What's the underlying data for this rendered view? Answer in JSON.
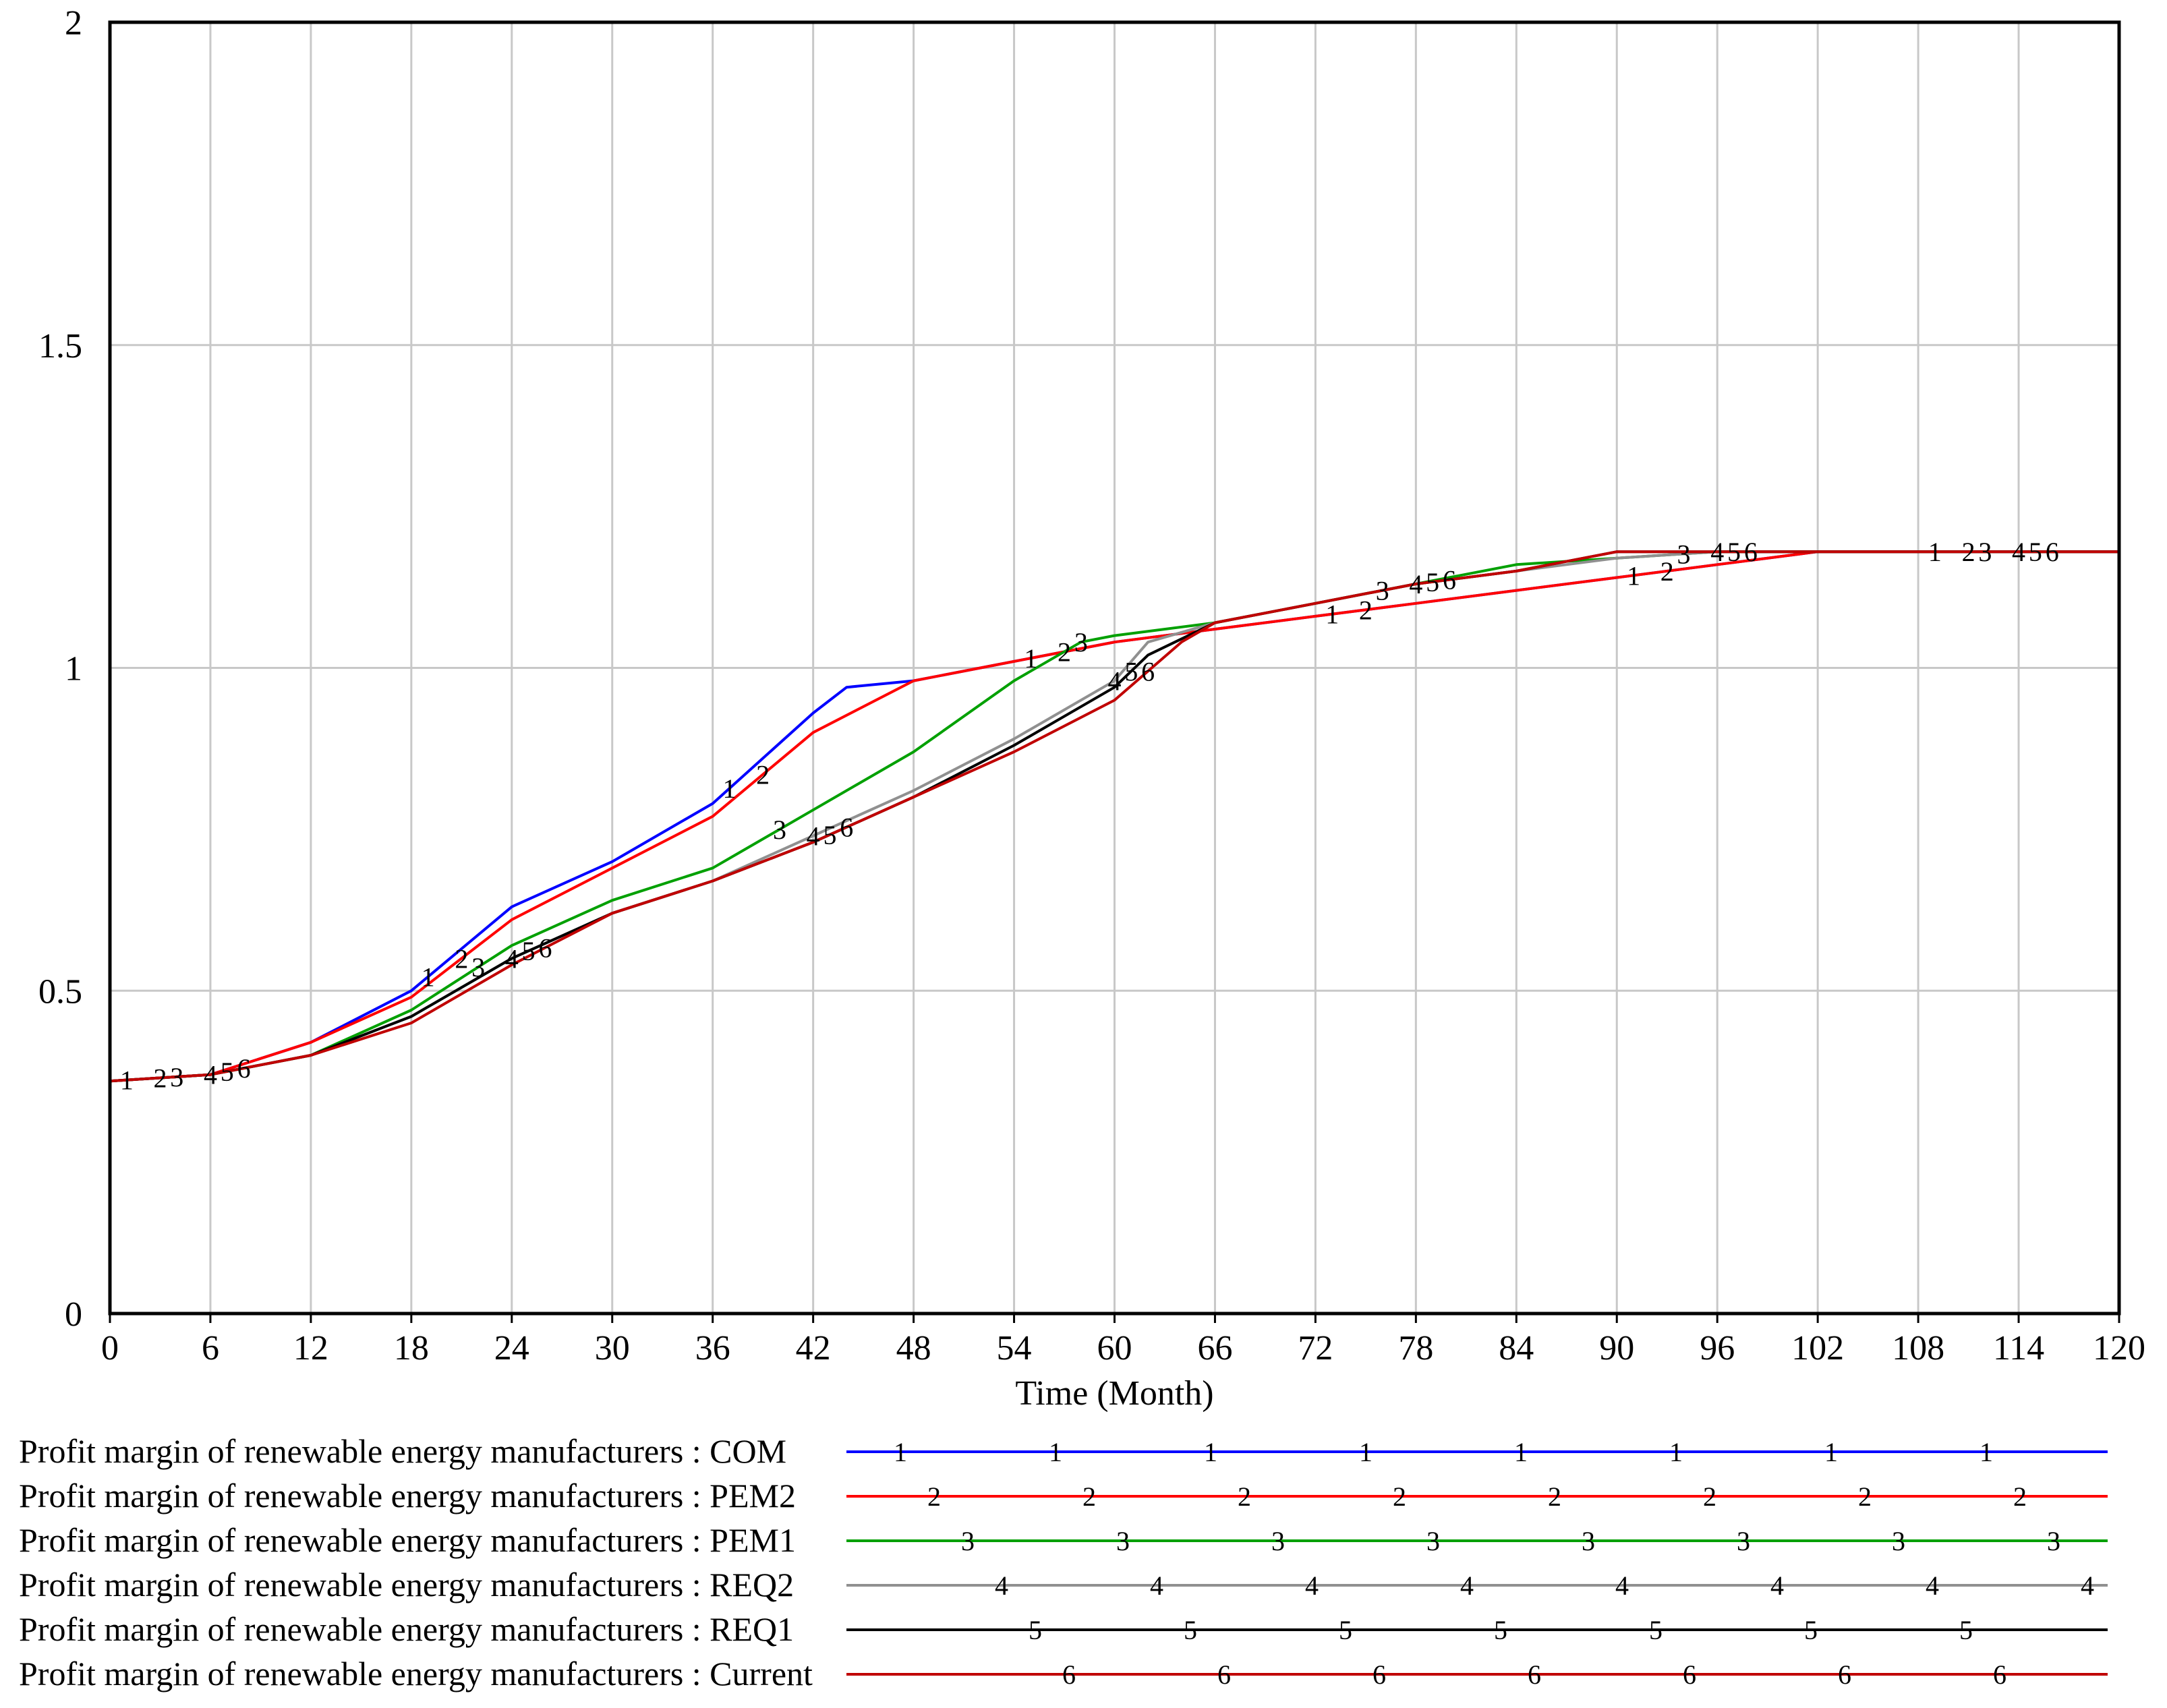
{
  "chart_data": {
    "type": "line",
    "xlabel": "Time (Month)",
    "ylabel": "",
    "xlim": [
      0,
      120
    ],
    "ylim": [
      0,
      2
    ],
    "x_ticks": [
      0,
      6,
      12,
      18,
      24,
      30,
      36,
      42,
      48,
      54,
      60,
      66,
      72,
      78,
      84,
      90,
      96,
      102,
      108,
      114,
      120
    ],
    "y_ticks": [
      0,
      0.5,
      1,
      1.5,
      2
    ],
    "y_tick_labels": [
      "0",
      "0.5",
      "1",
      "1.5",
      "2"
    ],
    "grid": true,
    "legend_position": "bottom",
    "series": [
      {
        "name": "Profit margin of renewable energy manufacturers : COM",
        "marker": "1",
        "color": "#0000ff",
        "x": [
          0,
          6,
          12,
          18,
          24,
          30,
          36,
          42,
          44,
          48,
          54,
          60,
          66,
          72,
          78,
          84,
          90,
          96,
          102,
          108,
          120
        ],
        "y": [
          0.36,
          0.37,
          0.42,
          0.5,
          0.63,
          0.7,
          0.79,
          0.93,
          0.97,
          0.98,
          1.01,
          1.04,
          1.06,
          1.08,
          1.1,
          1.12,
          1.14,
          1.16,
          1.18,
          1.18,
          1.18
        ]
      },
      {
        "name": "Profit margin of renewable energy manufacturers : PEM2",
        "marker": "2",
        "color": "#ff0000",
        "x": [
          0,
          6,
          12,
          18,
          24,
          30,
          36,
          42,
          48,
          54,
          60,
          66,
          72,
          78,
          84,
          90,
          96,
          102,
          108,
          120
        ],
        "y": [
          0.36,
          0.37,
          0.42,
          0.49,
          0.61,
          0.69,
          0.77,
          0.9,
          0.98,
          1.01,
          1.04,
          1.06,
          1.08,
          1.1,
          1.12,
          1.14,
          1.16,
          1.18,
          1.18,
          1.18
        ]
      },
      {
        "name": "Profit margin of renewable energy manufacturers : PEM1",
        "marker": "3",
        "color": "#00a000",
        "x": [
          0,
          6,
          12,
          18,
          24,
          30,
          36,
          42,
          48,
          54,
          58,
          60,
          66,
          72,
          78,
          84,
          90,
          96,
          102,
          108,
          120
        ],
        "y": [
          0.36,
          0.37,
          0.4,
          0.47,
          0.57,
          0.64,
          0.69,
          0.78,
          0.87,
          0.98,
          1.04,
          1.05,
          1.07,
          1.1,
          1.13,
          1.16,
          1.17,
          1.18,
          1.18,
          1.18,
          1.18
        ]
      },
      {
        "name": "Profit margin of renewable energy manufacturers : REQ2",
        "marker": "4",
        "color": "#909090",
        "x": [
          0,
          6,
          12,
          18,
          24,
          30,
          36,
          42,
          48,
          54,
          60,
          62,
          66,
          72,
          78,
          84,
          90,
          96,
          102,
          108,
          120
        ],
        "y": [
          0.36,
          0.37,
          0.4,
          0.46,
          0.55,
          0.62,
          0.67,
          0.74,
          0.81,
          0.89,
          0.98,
          1.04,
          1.07,
          1.1,
          1.13,
          1.15,
          1.17,
          1.18,
          1.18,
          1.18,
          1.18
        ]
      },
      {
        "name": "Profit margin of renewable energy manufacturers : REQ1",
        "marker": "5",
        "color": "#000000",
        "x": [
          0,
          6,
          12,
          18,
          24,
          30,
          36,
          42,
          48,
          54,
          60,
          62,
          66,
          72,
          78,
          84,
          90,
          96,
          102,
          108,
          120
        ],
        "y": [
          0.36,
          0.37,
          0.4,
          0.46,
          0.55,
          0.62,
          0.67,
          0.73,
          0.8,
          0.88,
          0.97,
          1.02,
          1.07,
          1.1,
          1.13,
          1.15,
          1.18,
          1.18,
          1.18,
          1.18,
          1.18
        ]
      },
      {
        "name": "Profit margin of renewable energy manufacturers : Current",
        "marker": "6",
        "color": "#c00000",
        "x": [
          0,
          6,
          12,
          18,
          24,
          30,
          36,
          42,
          48,
          54,
          60,
          64,
          66,
          72,
          78,
          84,
          90,
          96,
          102,
          108,
          120
        ],
        "y": [
          0.36,
          0.37,
          0.4,
          0.45,
          0.54,
          0.62,
          0.67,
          0.73,
          0.8,
          0.87,
          0.95,
          1.04,
          1.07,
          1.1,
          1.13,
          1.15,
          1.18,
          1.18,
          1.18,
          1.18,
          1.18
        ]
      }
    ]
  }
}
